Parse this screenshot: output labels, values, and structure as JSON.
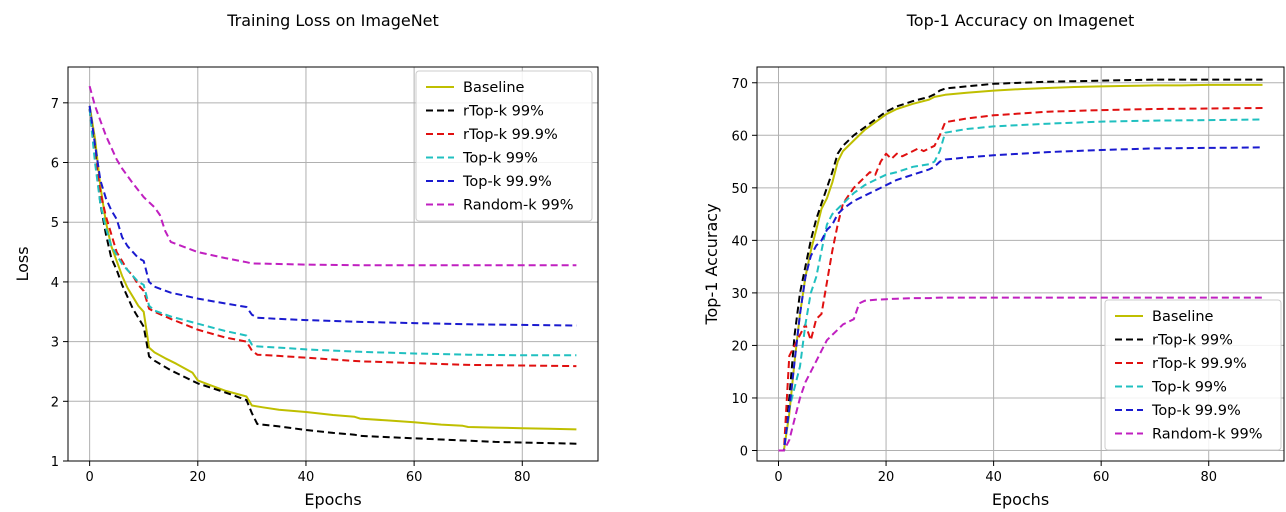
{
  "chart_data": [
    {
      "type": "line",
      "title": "Training Loss on ImageNet",
      "xlabel": "Epochs",
      "ylabel": "Loss",
      "xlim": [
        -4,
        94
      ],
      "ylim": [
        1,
        7.6
      ],
      "xticks": [
        0,
        20,
        40,
        60,
        80
      ],
      "yticks": [
        1,
        2,
        3,
        4,
        5,
        6,
        7
      ],
      "grid": true,
      "legend_position": "top-right",
      "series": [
        {
          "name": "Baseline",
          "color": "#bfbf00",
          "dash": "solid",
          "x": [
            0,
            1,
            2,
            3,
            4,
            5,
            6,
            7,
            8,
            9,
            10,
            11,
            12,
            14,
            16,
            19,
            20,
            22,
            25,
            29,
            30,
            32,
            35,
            40,
            45,
            49,
            50,
            55,
            60,
            65,
            69,
            70,
            75,
            80,
            85,
            90
          ],
          "y": [
            6.95,
            6.4,
            5.6,
            5.0,
            4.6,
            4.35,
            4.1,
            3.9,
            3.75,
            3.6,
            3.5,
            2.9,
            2.82,
            2.72,
            2.63,
            2.48,
            2.35,
            2.28,
            2.18,
            2.08,
            1.93,
            1.9,
            1.86,
            1.82,
            1.77,
            1.74,
            1.71,
            1.68,
            1.65,
            1.61,
            1.59,
            1.57,
            1.56,
            1.55,
            1.54,
            1.53
          ]
        },
        {
          "name": "rTop-k 99%",
          "color": "#000000",
          "dash": "dashed",
          "x": [
            0,
            1,
            2,
            3,
            4,
            5,
            6,
            7,
            8,
            9,
            10,
            11,
            12,
            15,
            20,
            25,
            29,
            30,
            31,
            35,
            40,
            45,
            49,
            50,
            55,
            60,
            65,
            70,
            75,
            80,
            85,
            90
          ],
          "y": [
            6.9,
            6.2,
            5.3,
            4.8,
            4.4,
            4.2,
            3.95,
            3.75,
            3.55,
            3.4,
            3.25,
            2.75,
            2.68,
            2.52,
            2.3,
            2.15,
            2.02,
            1.8,
            1.62,
            1.58,
            1.52,
            1.47,
            1.44,
            1.42,
            1.4,
            1.38,
            1.36,
            1.34,
            1.32,
            1.31,
            1.3,
            1.29
          ]
        },
        {
          "name": "rTop-k 99.9%",
          "color": "#e01010",
          "dash": "dashed",
          "x": [
            0,
            1,
            2,
            3,
            4,
            5,
            6,
            7,
            8,
            9,
            10,
            11,
            12,
            15,
            20,
            25,
            29,
            30,
            31,
            35,
            40,
            50,
            60,
            70,
            80,
            90
          ],
          "y": [
            6.9,
            6.1,
            5.5,
            5.1,
            4.8,
            4.5,
            4.35,
            4.2,
            4.1,
            3.95,
            3.85,
            3.55,
            3.5,
            3.38,
            3.2,
            3.07,
            3.0,
            2.85,
            2.78,
            2.76,
            2.73,
            2.67,
            2.64,
            2.61,
            2.6,
            2.59
          ]
        },
        {
          "name": "Top-k 99%",
          "color": "#20c0c0",
          "dash": "dashed",
          "x": [
            0,
            1,
            2,
            3,
            4,
            5,
            6,
            7,
            8,
            9,
            10,
            11,
            12,
            15,
            20,
            25,
            29,
            30,
            31,
            35,
            40,
            50,
            60,
            70,
            80,
            90
          ],
          "y": [
            6.9,
            6.0,
            5.3,
            4.9,
            4.6,
            4.45,
            4.3,
            4.2,
            4.1,
            4.0,
            3.95,
            3.6,
            3.52,
            3.42,
            3.3,
            3.18,
            3.1,
            2.95,
            2.92,
            2.9,
            2.87,
            2.83,
            2.8,
            2.78,
            2.77,
            2.77
          ]
        },
        {
          "name": "Top-k 99.9%",
          "color": "#1a1acf",
          "dash": "dashed",
          "x": [
            0,
            1,
            2,
            3,
            4,
            5,
            6,
            7,
            8,
            9,
            10,
            11,
            12,
            15,
            20,
            25,
            29,
            30,
            31,
            35,
            40,
            50,
            60,
            70,
            80,
            90
          ],
          "y": [
            6.95,
            6.3,
            5.7,
            5.4,
            5.2,
            5.05,
            4.75,
            4.6,
            4.5,
            4.4,
            4.35,
            4.0,
            3.92,
            3.82,
            3.72,
            3.64,
            3.58,
            3.45,
            3.4,
            3.38,
            3.36,
            3.33,
            3.31,
            3.29,
            3.28,
            3.27
          ]
        },
        {
          "name": "Random-k 99%",
          "color": "#c020c0",
          "dash": "dashed",
          "x": [
            0,
            1,
            2,
            3,
            4,
            5,
            6,
            8,
            10,
            12,
            13,
            14,
            15,
            20,
            25,
            29,
            30,
            35,
            40,
            50,
            60,
            70,
            80,
            90
          ],
          "y": [
            7.28,
            6.95,
            6.7,
            6.45,
            6.25,
            6.05,
            5.9,
            5.65,
            5.42,
            5.25,
            5.12,
            4.85,
            4.67,
            4.5,
            4.4,
            4.33,
            4.31,
            4.3,
            4.29,
            4.28,
            4.28,
            4.28,
            4.28,
            4.28
          ]
        }
      ]
    },
    {
      "type": "line",
      "title": "Top-1 Accuracy on Imagenet",
      "xlabel": "Epochs",
      "ylabel": "Top-1 Accuracy",
      "xlim": [
        -4,
        94
      ],
      "ylim": [
        -2,
        73
      ],
      "xticks": [
        0,
        20,
        40,
        60,
        80
      ],
      "yticks": [
        0,
        10,
        20,
        30,
        40,
        50,
        60,
        70
      ],
      "grid": true,
      "legend_position": "bottom-right",
      "series": [
        {
          "name": "Baseline",
          "color": "#bfbf00",
          "dash": "solid",
          "x": [
            0,
            1,
            2,
            3,
            4,
            5,
            6,
            7,
            8,
            9,
            10,
            11,
            12,
            14,
            16,
            18,
            20,
            22,
            25,
            28,
            29,
            30,
            31,
            35,
            40,
            45,
            50,
            55,
            60,
            65,
            70,
            75,
            80,
            85,
            90
          ],
          "y": [
            0,
            0,
            7,
            17,
            26,
            33,
            38,
            42,
            46,
            48,
            51,
            55,
            57,
            59,
            61,
            62.5,
            64,
            65,
            66,
            66.8,
            67.3,
            67.5,
            67.7,
            68.1,
            68.5,
            68.8,
            69.0,
            69.2,
            69.3,
            69.4,
            69.5,
            69.5,
            69.6,
            69.6,
            69.6
          ]
        },
        {
          "name": "rTop-k 99%",
          "color": "#000000",
          "dash": "dashed",
          "x": [
            0,
            1,
            2,
            3,
            4,
            5,
            6,
            7,
            8,
            9,
            10,
            11,
            12,
            14,
            16,
            18,
            20,
            22,
            25,
            28,
            29,
            30,
            31,
            35,
            40,
            45,
            50,
            55,
            60,
            65,
            70,
            75,
            80,
            85,
            90
          ],
          "y": [
            0,
            0,
            10,
            22,
            30,
            35,
            40,
            44,
            47,
            50,
            53,
            56.5,
            58,
            60,
            61.5,
            63,
            64.5,
            65.5,
            66.5,
            67.3,
            67.8,
            68.5,
            68.9,
            69.3,
            69.8,
            70.0,
            70.2,
            70.3,
            70.4,
            70.5,
            70.6,
            70.6,
            70.6,
            70.6,
            70.6
          ]
        },
        {
          "name": "rTop-k 99.9%",
          "color": "#e01010",
          "dash": "dashed",
          "x": [
            0,
            1,
            2,
            3,
            4,
            5,
            6,
            7,
            8,
            9,
            10,
            11,
            12,
            14,
            16,
            17,
            18,
            19,
            20,
            21,
            22,
            23,
            24,
            25,
            26,
            27,
            28,
            29,
            30,
            31,
            35,
            40,
            50,
            60,
            70,
            80,
            90
          ],
          "y": [
            0,
            0,
            18,
            20,
            22,
            24,
            21,
            25,
            26,
            32,
            38,
            43,
            47,
            50,
            52,
            53,
            52.5,
            55,
            56.5,
            55.5,
            56.5,
            56,
            56.5,
            57,
            57.5,
            57,
            57.5,
            58,
            60,
            62.5,
            63.2,
            63.8,
            64.5,
            64.8,
            65.0,
            65.1,
            65.2
          ]
        },
        {
          "name": "Top-k 99%",
          "color": "#20c0c0",
          "dash": "dashed",
          "x": [
            0,
            1,
            2,
            3,
            4,
            5,
            6,
            7,
            8,
            9,
            10,
            11,
            12,
            14,
            16,
            18,
            20,
            22,
            25,
            28,
            29,
            30,
            31,
            35,
            40,
            50,
            60,
            70,
            80,
            90
          ],
          "y": [
            0,
            0,
            8,
            12,
            16,
            24,
            30,
            33,
            38,
            43,
            45,
            46,
            47,
            49,
            50.5,
            51.5,
            52.5,
            53,
            54,
            54.5,
            55,
            57,
            60.5,
            61.2,
            61.7,
            62.2,
            62.6,
            62.8,
            62.9,
            63.0
          ]
        },
        {
          "name": "Top-k 99.9%",
          "color": "#1a1acf",
          "dash": "dashed",
          "x": [
            0,
            1,
            2,
            3,
            4,
            5,
            6,
            7,
            8,
            9,
            10,
            11,
            12,
            14,
            16,
            18,
            20,
            22,
            25,
            28,
            29,
            30,
            31,
            35,
            40,
            50,
            60,
            70,
            80,
            90
          ],
          "y": [
            0,
            0,
            8,
            17,
            26,
            33,
            37,
            39,
            40,
            42,
            43,
            45,
            46,
            47.5,
            48.5,
            49.5,
            50.5,
            51.5,
            52.5,
            53.5,
            54,
            55,
            55.4,
            55.8,
            56.2,
            56.8,
            57.2,
            57.5,
            57.6,
            57.7
          ]
        },
        {
          "name": "Random-k 99%",
          "color": "#c020c0",
          "dash": "dashed",
          "x": [
            0,
            1,
            2,
            3,
            4,
            5,
            6,
            7,
            8,
            9,
            10,
            11,
            12,
            13,
            14,
            15,
            16,
            18,
            20,
            22,
            25,
            28,
            30,
            35,
            40,
            50,
            60,
            70,
            80,
            90
          ],
          "y": [
            0,
            0,
            2,
            6,
            10,
            13,
            15,
            17,
            19,
            21,
            22,
            23,
            24,
            24.5,
            25,
            28,
            28.5,
            28.7,
            28.8,
            28.9,
            29.0,
            29.0,
            29.1,
            29.1,
            29.1,
            29.1,
            29.1,
            29.1,
            29.1,
            29.1
          ]
        }
      ]
    }
  ]
}
